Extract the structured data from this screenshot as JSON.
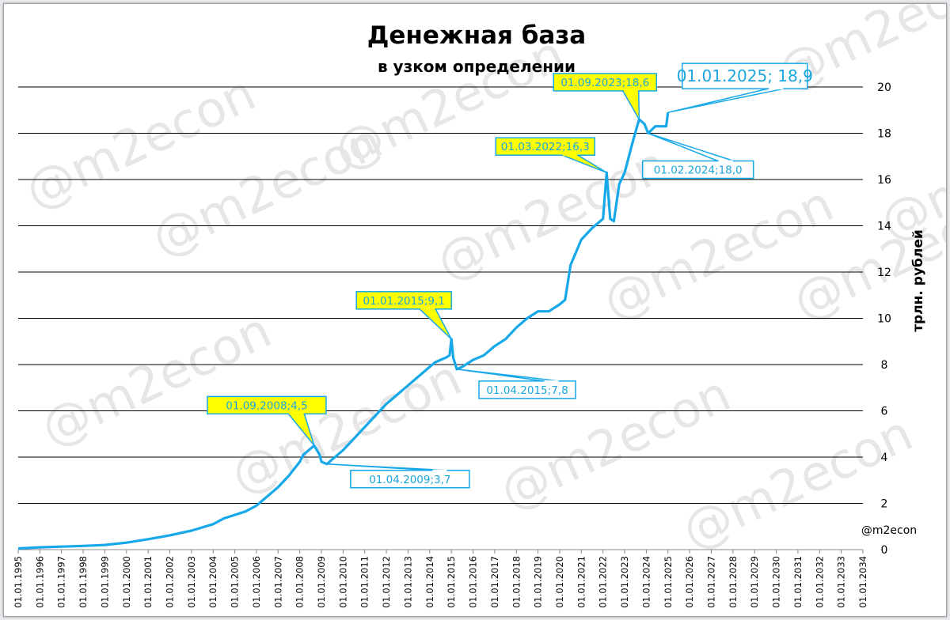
{
  "chart_data": {
    "type": "line",
    "title": "Денежная база",
    "subtitle": "в узком определении",
    "ylabel": "трлн. рублей",
    "source_handle": "@m2econ",
    "watermark": "@m2econ",
    "ylim": [
      0,
      20
    ],
    "yticks": [
      "0",
      "2",
      "4",
      "6",
      "8",
      "10",
      "12",
      "14",
      "16",
      "18",
      "20"
    ],
    "xlim_years": [
      1995,
      2034
    ],
    "xticks": [
      "01.01.1995",
      "01.01.1996",
      "01.01.1997",
      "01.01.1998",
      "01.01.1999",
      "01.01.2000",
      "01.01.2001",
      "01.01.2002",
      "01.01.2003",
      "01.01.2004",
      "01.01.2005",
      "01.01.2006",
      "01.01.2007",
      "01.01.2008",
      "01.01.2009",
      "01.01.2010",
      "01.01.2011",
      "01.01.2012",
      "01.01.2013",
      "01.01.2014",
      "01.01.2015",
      "01.01.2016",
      "01.01.2017",
      "01.01.2018",
      "01.01.2019",
      "01.01.2020",
      "01.01.2021",
      "01.01.2022",
      "01.01.2023",
      "01.01.2024",
      "01.01.2025",
      "01.01.2026",
      "01.01.2027",
      "01.01.2028",
      "01.01.2029",
      "01.01.2030",
      "01.01.2031",
      "01.01.2032",
      "01.01.2033",
      "01.01.2034"
    ],
    "grid": true,
    "line_color": "#16a8e8",
    "highlight_color": "#ffff00",
    "series": [
      {
        "points": [
          [
            "1995-01-01",
            0.05
          ],
          [
            "1996-01-01",
            0.1
          ],
          [
            "1997-01-01",
            0.13
          ],
          [
            "1998-01-01",
            0.16
          ],
          [
            "1999-01-01",
            0.2
          ],
          [
            "2000-01-01",
            0.3
          ],
          [
            "2001-01-01",
            0.45
          ],
          [
            "2002-01-01",
            0.62
          ],
          [
            "2003-01-01",
            0.82
          ],
          [
            "2004-01-01",
            1.1
          ],
          [
            "2004-07-01",
            1.35
          ],
          [
            "2005-01-01",
            1.5
          ],
          [
            "2005-07-01",
            1.65
          ],
          [
            "2006-01-01",
            1.9
          ],
          [
            "2006-07-01",
            2.3
          ],
          [
            "2007-01-01",
            2.7
          ],
          [
            "2007-07-01",
            3.2
          ],
          [
            "2008-01-01",
            3.8
          ],
          [
            "2008-03-01",
            4.1
          ],
          [
            "2008-06-01",
            4.3
          ],
          [
            "2008-09-01",
            4.5
          ],
          [
            "2008-12-01",
            4.1
          ],
          [
            "2009-01-01",
            3.8
          ],
          [
            "2009-04-01",
            3.7
          ],
          [
            "2009-07-01",
            3.9
          ],
          [
            "2010-01-01",
            4.3
          ],
          [
            "2010-07-01",
            4.8
          ],
          [
            "2011-01-01",
            5.3
          ],
          [
            "2011-07-01",
            5.8
          ],
          [
            "2012-01-01",
            6.3
          ],
          [
            "2012-07-01",
            6.7
          ],
          [
            "2013-01-01",
            7.1
          ],
          [
            "2013-07-01",
            7.5
          ],
          [
            "2014-01-01",
            7.9
          ],
          [
            "2014-04-01",
            8.1
          ],
          [
            "2014-07-01",
            8.2
          ],
          [
            "2014-10-01",
            8.3
          ],
          [
            "2014-12-01",
            8.4
          ],
          [
            "2015-01-01",
            9.1
          ],
          [
            "2015-02-01",
            8.3
          ],
          [
            "2015-04-01",
            7.8
          ],
          [
            "2015-07-01",
            7.9
          ],
          [
            "2016-01-01",
            8.2
          ],
          [
            "2016-07-01",
            8.4
          ],
          [
            "2017-01-01",
            8.8
          ],
          [
            "2017-07-01",
            9.1
          ],
          [
            "2018-01-01",
            9.6
          ],
          [
            "2018-07-01",
            10.0
          ],
          [
            "2019-01-01",
            10.3
          ],
          [
            "2019-07-01",
            10.3
          ],
          [
            "2020-01-01",
            10.6
          ],
          [
            "2020-04-01",
            10.8
          ],
          [
            "2020-07-01",
            12.3
          ],
          [
            "2021-01-01",
            13.4
          ],
          [
            "2021-07-01",
            13.9
          ],
          [
            "2022-01-01",
            14.3
          ],
          [
            "2022-03-01",
            16.3
          ],
          [
            "2022-05-01",
            14.3
          ],
          [
            "2022-07-01",
            14.2
          ],
          [
            "2022-10-01",
            15.8
          ],
          [
            "2023-01-01",
            16.3
          ],
          [
            "2023-05-01",
            17.5
          ],
          [
            "2023-09-01",
            18.6
          ],
          [
            "2023-12-01",
            18.4
          ],
          [
            "2024-02-01",
            18.0
          ],
          [
            "2024-06-01",
            18.3
          ],
          [
            "2024-12-01",
            18.3
          ],
          [
            "2025-01-01",
            18.9
          ]
        ]
      }
    ],
    "annotations": [
      {
        "label": "01.09.2008;4,5",
        "date": "2008-09-01",
        "value": 4.5,
        "style": "yellow"
      },
      {
        "label": "01.04.2009;3,7",
        "date": "2009-04-01",
        "value": 3.7,
        "style": "white"
      },
      {
        "label": "01.01.2015;9,1",
        "date": "2015-01-01",
        "value": 9.1,
        "style": "yellow"
      },
      {
        "label": "01.04.2015;7,8",
        "date": "2015-04-01",
        "value": 7.8,
        "style": "white"
      },
      {
        "label": "01.03.2022;16,3",
        "date": "2022-03-01",
        "value": 16.3,
        "style": "yellow"
      },
      {
        "label": "01.09.2023;18,6",
        "date": "2023-09-01",
        "value": 18.6,
        "style": "yellow"
      },
      {
        "label": "01.02.2024;18,0",
        "date": "2024-02-01",
        "value": 18.0,
        "style": "white"
      },
      {
        "label": "01.01.2025; 18,9",
        "date": "2025-01-01",
        "value": 18.9,
        "style": "white-big"
      }
    ]
  }
}
